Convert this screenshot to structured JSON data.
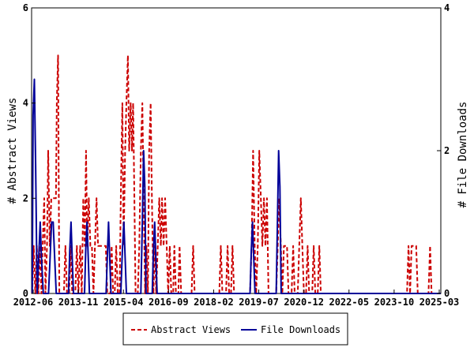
{
  "chart_data": {
    "type": "line",
    "title": "",
    "ylabel_left": "# Abstract Views",
    "ylabel_right": "# File Downloads",
    "x_ticks": [
      "2012-06",
      "2013-11",
      "2015-04",
      "2016-09",
      "2018-02",
      "2019-07",
      "2020-12",
      "2022-05",
      "2023-10",
      "2025-03"
    ],
    "y_left": {
      "min": 0,
      "max": 6,
      "ticks": [
        0,
        2,
        4,
        6
      ]
    },
    "y_right": {
      "min": 0,
      "max": 4,
      "ticks": [
        0,
        2,
        4
      ]
    },
    "x_range": [
      2012.4,
      2025.7
    ],
    "grid": false,
    "legend": {
      "position": "bottom",
      "entries": [
        "Abstract Views",
        "File Downloads"
      ]
    },
    "series": [
      {
        "name": "Abstract Views",
        "axis": "left",
        "color": "#cc0000",
        "style": "dashed",
        "points": [
          [
            2012.42,
            0
          ],
          [
            2012.47,
            1
          ],
          [
            2012.52,
            0
          ],
          [
            2012.57,
            1
          ],
          [
            2012.62,
            0
          ],
          [
            2012.67,
            1
          ],
          [
            2012.72,
            0
          ],
          [
            2012.76,
            1
          ],
          [
            2012.81,
            2
          ],
          [
            2012.85,
            0
          ],
          [
            2012.9,
            1
          ],
          [
            2012.94,
            3
          ],
          [
            2012.99,
            1
          ],
          [
            2013.04,
            2
          ],
          [
            2013.09,
            2
          ],
          [
            2013.14,
            2
          ],
          [
            2013.19,
            2
          ],
          [
            2013.22,
            4
          ],
          [
            2013.26,
            5
          ],
          [
            2013.3,
            0
          ],
          [
            2013.45,
            0
          ],
          [
            2013.5,
            1
          ],
          [
            2013.55,
            0
          ],
          [
            2013.62,
            0
          ],
          [
            2013.67,
            1
          ],
          [
            2013.72,
            0
          ],
          [
            2013.82,
            0
          ],
          [
            2013.87,
            1
          ],
          [
            2013.92,
            0
          ],
          [
            2013.98,
            1
          ],
          [
            2014.03,
            0
          ],
          [
            2014.08,
            2
          ],
          [
            2014.13,
            1
          ],
          [
            2014.17,
            3
          ],
          [
            2014.21,
            1
          ],
          [
            2014.26,
            2
          ],
          [
            2014.31,
            1
          ],
          [
            2014.36,
            1
          ],
          [
            2014.41,
            0
          ],
          [
            2014.46,
            1
          ],
          [
            2014.51,
            2
          ],
          [
            2014.56,
            1
          ],
          [
            2014.61,
            1
          ],
          [
            2014.66,
            1
          ],
          [
            2014.71,
            1
          ],
          [
            2014.76,
            1
          ],
          [
            2014.81,
            1
          ],
          [
            2014.86,
            0
          ],
          [
            2014.96,
            0
          ],
          [
            2015.0,
            1
          ],
          [
            2015.05,
            0
          ],
          [
            2015.1,
            0
          ],
          [
            2015.15,
            1
          ],
          [
            2015.2,
            0
          ],
          [
            2015.26,
            0
          ],
          [
            2015.3,
            2
          ],
          [
            2015.35,
            4
          ],
          [
            2015.39,
            1
          ],
          [
            2015.44,
            3
          ],
          [
            2015.48,
            4
          ],
          [
            2015.53,
            5
          ],
          [
            2015.57,
            3
          ],
          [
            2015.62,
            4
          ],
          [
            2015.66,
            3
          ],
          [
            2015.7,
            4
          ],
          [
            2015.74,
            2
          ],
          [
            2015.78,
            0
          ],
          [
            2015.85,
            0
          ],
          [
            2015.9,
            1
          ],
          [
            2015.95,
            3
          ],
          [
            2016.0,
            4
          ],
          [
            2016.04,
            2
          ],
          [
            2016.09,
            0
          ],
          [
            2016.13,
            1
          ],
          [
            2016.18,
            0
          ],
          [
            2016.22,
            3
          ],
          [
            2016.27,
            4
          ],
          [
            2016.31,
            2
          ],
          [
            2016.36,
            0
          ],
          [
            2016.41,
            1
          ],
          [
            2016.45,
            0
          ],
          [
            2016.5,
            1
          ],
          [
            2016.55,
            2
          ],
          [
            2016.6,
            1
          ],
          [
            2016.64,
            2
          ],
          [
            2016.69,
            1
          ],
          [
            2016.74,
            2
          ],
          [
            2016.79,
            1
          ],
          [
            2016.84,
            0
          ],
          [
            2016.89,
            1
          ],
          [
            2016.94,
            0
          ],
          [
            2017.0,
            0
          ],
          [
            2017.04,
            1
          ],
          [
            2017.09,
            0
          ],
          [
            2017.17,
            0
          ],
          [
            2017.21,
            1
          ],
          [
            2017.26,
            0
          ],
          [
            2017.6,
            0
          ],
          [
            2017.65,
            1
          ],
          [
            2017.7,
            0
          ],
          [
            2018.5,
            0
          ],
          [
            2018.55,
            1
          ],
          [
            2018.6,
            0
          ],
          [
            2018.72,
            0
          ],
          [
            2018.77,
            1
          ],
          [
            2018.82,
            0
          ],
          [
            2018.88,
            0
          ],
          [
            2018.93,
            1
          ],
          [
            2018.98,
            0
          ],
          [
            2019.5,
            0
          ],
          [
            2019.55,
            1
          ],
          [
            2019.6,
            3
          ],
          [
            2019.65,
            1
          ],
          [
            2019.7,
            0
          ],
          [
            2019.75,
            1
          ],
          [
            2019.8,
            3
          ],
          [
            2019.85,
            2
          ],
          [
            2019.9,
            1
          ],
          [
            2019.95,
            2
          ],
          [
            2020.0,
            1
          ],
          [
            2020.05,
            2
          ],
          [
            2020.1,
            0
          ],
          [
            2020.35,
            0
          ],
          [
            2020.4,
            1
          ],
          [
            2020.45,
            2
          ],
          [
            2020.5,
            1
          ],
          [
            2020.55,
            0
          ],
          [
            2020.6,
            1
          ],
          [
            2020.7,
            1
          ],
          [
            2020.75,
            0
          ],
          [
            2020.85,
            0
          ],
          [
            2020.9,
            1
          ],
          [
            2020.95,
            0
          ],
          [
            2021.05,
            0
          ],
          [
            2021.1,
            1
          ],
          [
            2021.15,
            2
          ],
          [
            2021.2,
            1
          ],
          [
            2021.25,
            0
          ],
          [
            2021.32,
            0
          ],
          [
            2021.37,
            1
          ],
          [
            2021.42,
            0
          ],
          [
            2021.52,
            0
          ],
          [
            2021.57,
            1
          ],
          [
            2021.62,
            0
          ],
          [
            2021.7,
            0
          ],
          [
            2021.75,
            1
          ],
          [
            2021.8,
            0
          ],
          [
            2024.6,
            0
          ],
          [
            2024.65,
            1
          ],
          [
            2024.7,
            0
          ],
          [
            2024.75,
            1
          ],
          [
            2024.8,
            1
          ],
          [
            2024.85,
            1
          ],
          [
            2024.9,
            1
          ],
          [
            2024.95,
            0
          ],
          [
            2025.3,
            0
          ],
          [
            2025.35,
            1
          ],
          [
            2025.4,
            0
          ],
          [
            2025.7,
            0
          ]
        ]
      },
      {
        "name": "File Downloads",
        "axis": "right",
        "color": "#000099",
        "style": "solid",
        "points": [
          [
            2012.42,
            0
          ],
          [
            2012.45,
            2.5
          ],
          [
            2012.49,
            3
          ],
          [
            2012.53,
            1.8
          ],
          [
            2012.58,
            0
          ],
          [
            2012.63,
            0.5
          ],
          [
            2012.68,
            1
          ],
          [
            2012.72,
            0.5
          ],
          [
            2012.78,
            0
          ],
          [
            2012.95,
            0
          ],
          [
            2013.0,
            0.5
          ],
          [
            2013.05,
            1
          ],
          [
            2013.1,
            1
          ],
          [
            2013.15,
            0.5
          ],
          [
            2013.2,
            0
          ],
          [
            2013.6,
            0
          ],
          [
            2013.64,
            0.6
          ],
          [
            2013.68,
            1
          ],
          [
            2013.72,
            0.5
          ],
          [
            2013.76,
            0
          ],
          [
            2014.12,
            0
          ],
          [
            2014.16,
            0.6
          ],
          [
            2014.2,
            1
          ],
          [
            2014.24,
            0.5
          ],
          [
            2014.28,
            0
          ],
          [
            2014.82,
            0
          ],
          [
            2014.86,
            0.5
          ],
          [
            2014.9,
            1
          ],
          [
            2014.94,
            0.5
          ],
          [
            2014.98,
            0
          ],
          [
            2015.3,
            0
          ],
          [
            2015.35,
            0.6
          ],
          [
            2015.4,
            1
          ],
          [
            2015.44,
            0.5
          ],
          [
            2015.48,
            0
          ],
          [
            2015.95,
            0
          ],
          [
            2016.0,
            1
          ],
          [
            2016.04,
            2
          ],
          [
            2016.08,
            1.5
          ],
          [
            2016.12,
            0
          ],
          [
            2016.32,
            0
          ],
          [
            2016.36,
            0.6
          ],
          [
            2016.4,
            1
          ],
          [
            2016.44,
            0.5
          ],
          [
            2016.48,
            0
          ],
          [
            2019.5,
            0
          ],
          [
            2019.54,
            0.6
          ],
          [
            2019.58,
            1
          ],
          [
            2019.62,
            0.5
          ],
          [
            2019.66,
            0
          ],
          [
            2020.35,
            0
          ],
          [
            2020.39,
            1
          ],
          [
            2020.43,
            2
          ],
          [
            2020.47,
            1.5
          ],
          [
            2020.51,
            0
          ],
          [
            2025.7,
            0
          ]
        ]
      }
    ]
  }
}
